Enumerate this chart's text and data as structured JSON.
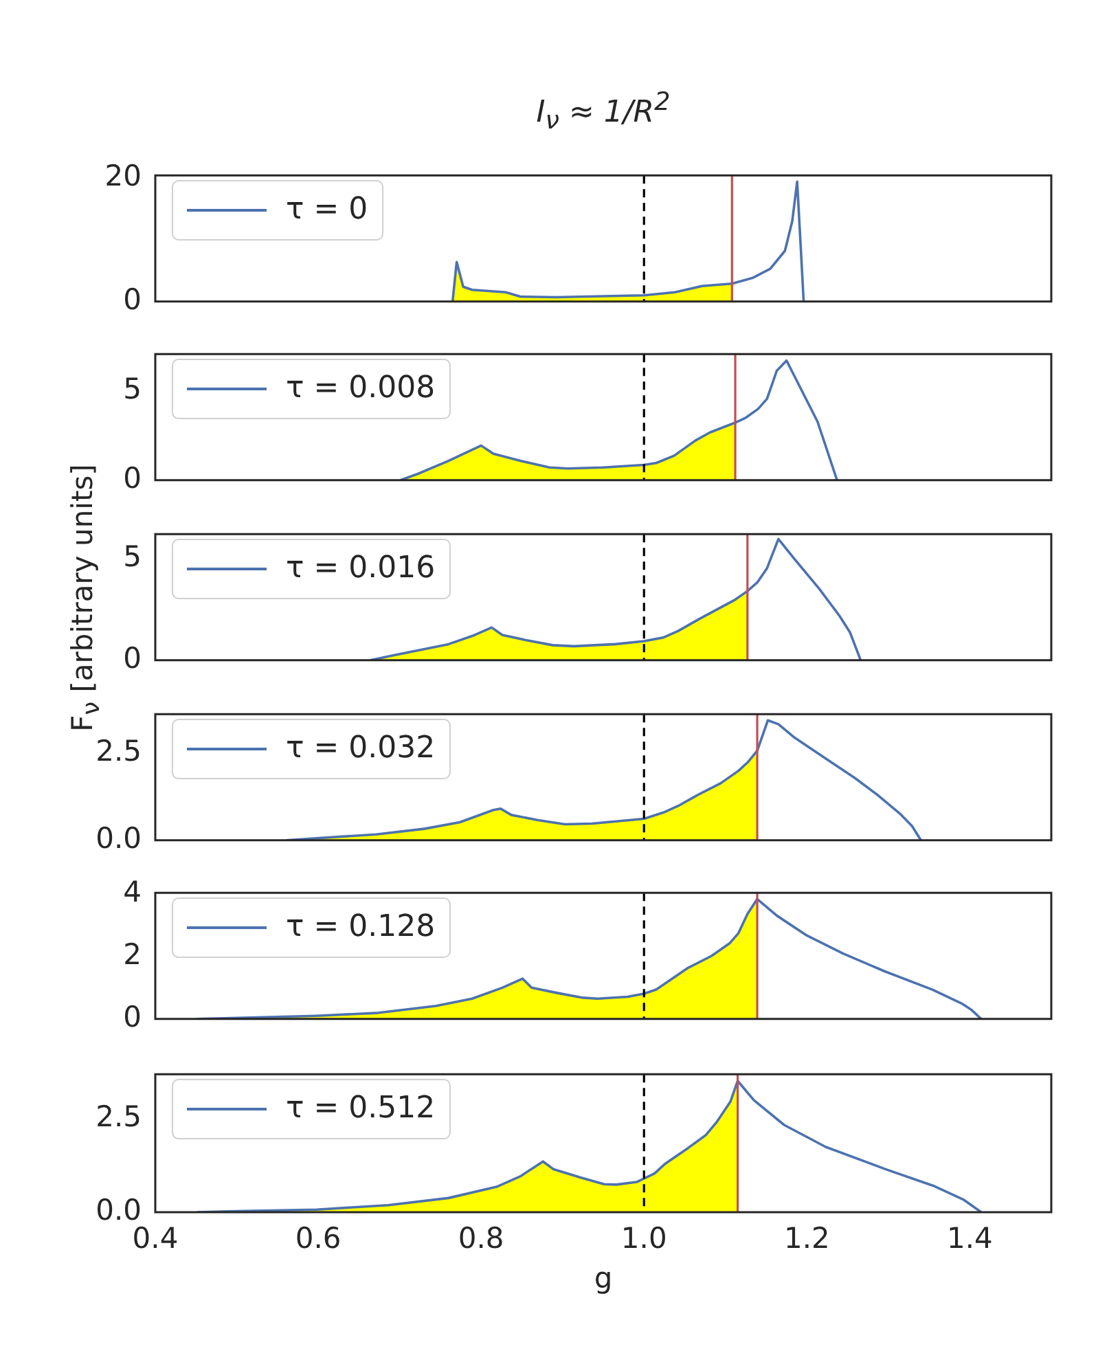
{
  "chart_data": [
    {
      "type": "line",
      "title": "I$_{ν}$ ≈ 1/R$^{2}$",
      "xlim": [
        0.4,
        1.5
      ],
      "ylim": [
        0,
        20.4
      ],
      "yticks": [
        0,
        20
      ],
      "tick_labels": "y",
      "legend": "top left",
      "ref_lines": [
        {
          "axis": "x",
          "value": 1.0,
          "color": "#000000",
          "line_style": "dashed"
        },
        {
          "axis": "x",
          "value": 1.108,
          "color": "#c44e52",
          "line_style": "solid"
        }
      ],
      "series": [
        {
          "type": "area",
          "color": "#ffff00",
          "x": [
            0.765,
            0.77,
            0.778,
            0.789,
            0.83,
            0.848,
            0.892,
            1.0,
            1.038,
            1.071,
            1.108
          ],
          "values": [
            0,
            6.4,
            2.4,
            1.9,
            1.5,
            0.8,
            0.7,
            1.0,
            1.5,
            2.5,
            2.9
          ]
        },
        {
          "type": "line",
          "name": "τ = 0",
          "color": "#4c72b0",
          "x": [
            0.765,
            0.77,
            0.778,
            0.789,
            0.83,
            0.848,
            0.892,
            1.0,
            1.038,
            1.071,
            1.108,
            1.133,
            1.155,
            1.173,
            1.182,
            1.188,
            1.192,
            1.196
          ],
          "values": [
            0,
            6.4,
            2.4,
            1.9,
            1.5,
            0.8,
            0.7,
            1.0,
            1.5,
            2.5,
            2.9,
            3.8,
            5.3,
            8.2,
            13,
            19.4,
            9.8,
            0
          ]
        }
      ]
    },
    {
      "type": "line",
      "xlim": [
        0.4,
        1.5
      ],
      "ylim": [
        0,
        7.1
      ],
      "yticks": [
        0,
        5
      ],
      "tick_labels": "y",
      "legend": "top left",
      "ref_lines": [
        {
          "axis": "x",
          "value": 1.0,
          "color": "#000000",
          "line_style": "dashed"
        },
        {
          "axis": "x",
          "value": 1.112,
          "color": "#c44e52",
          "line_style": "solid"
        }
      ],
      "series": [
        {
          "type": "area",
          "color": "#ffff00",
          "x": [
            0.701,
            0.723,
            0.76,
            0.8,
            0.815,
            0.848,
            0.884,
            0.906,
            0.95,
            1.0,
            1.015,
            1.037,
            1.063,
            1.081,
            1.112
          ],
          "values": [
            0,
            0.37,
            1.09,
            1.95,
            1.49,
            1.09,
            0.72,
            0.66,
            0.72,
            0.86,
            0.97,
            1.38,
            2.23,
            2.69,
            3.24
          ]
        },
        {
          "type": "line",
          "name": "τ = 0.008",
          "color": "#4c72b0",
          "x": [
            0.701,
            0.723,
            0.76,
            0.8,
            0.815,
            0.848,
            0.884,
            0.906,
            0.95,
            1.0,
            1.015,
            1.037,
            1.063,
            1.081,
            1.112,
            1.125,
            1.14,
            1.151,
            1.163,
            1.175,
            1.213,
            1.237
          ],
          "values": [
            0,
            0.37,
            1.09,
            1.95,
            1.49,
            1.09,
            0.72,
            0.66,
            0.72,
            0.86,
            0.97,
            1.38,
            2.23,
            2.69,
            3.24,
            3.52,
            4.01,
            4.58,
            6.16,
            6.73,
            3.3,
            0
          ]
        }
      ]
    },
    {
      "type": "line",
      "ylabel": "F$_{ν}$ [arbitrary units]",
      "xlim": [
        0.4,
        1.5
      ],
      "ylim": [
        0,
        6.2
      ],
      "yticks": [
        0,
        5
      ],
      "tick_labels": "y",
      "legend": "top left",
      "ref_lines": [
        {
          "axis": "x",
          "value": 1.0,
          "color": "#000000",
          "line_style": "dashed"
        },
        {
          "axis": "x",
          "value": 1.127,
          "color": "#c44e52",
          "line_style": "solid"
        }
      ],
      "series": [
        {
          "type": "area",
          "color": "#ffff00",
          "x": [
            0.664,
            0.693,
            0.76,
            0.789,
            0.813,
            0.826,
            0.855,
            0.888,
            0.914,
            0.965,
            1.0,
            1.024,
            1.042,
            1.068,
            1.112,
            1.127
          ],
          "values": [
            0,
            0.25,
            0.79,
            1.19,
            1.61,
            1.24,
            0.99,
            0.74,
            0.69,
            0.79,
            0.94,
            1.12,
            1.44,
            2.03,
            2.98,
            3.4
          ]
        },
        {
          "type": "line",
          "name": "τ = 0.016",
          "color": "#4c72b0",
          "x": [
            0.664,
            0.693,
            0.76,
            0.789,
            0.813,
            0.826,
            0.855,
            0.888,
            0.914,
            0.965,
            1.0,
            1.024,
            1.042,
            1.068,
            1.112,
            1.127,
            1.139,
            1.151,
            1.165,
            1.185,
            1.215,
            1.24,
            1.253,
            1.266
          ],
          "values": [
            0,
            0.25,
            0.79,
            1.19,
            1.61,
            1.24,
            0.99,
            0.74,
            0.69,
            0.79,
            0.94,
            1.12,
            1.44,
            2.03,
            2.98,
            3.4,
            3.82,
            4.52,
            5.96,
            4.96,
            3.52,
            2.18,
            1.36,
            0
          ]
        }
      ]
    },
    {
      "type": "line",
      "xlim": [
        0.4,
        1.5
      ],
      "ylim": [
        0,
        3.63
      ],
      "yticks": [
        {
          "value": 0,
          "label": "0.0"
        },
        2.5
      ],
      "tick_labels": "y",
      "legend": "top left",
      "ref_lines": [
        {
          "axis": "x",
          "value": 1.0,
          "color": "#000000",
          "line_style": "dashed"
        },
        {
          "axis": "x",
          "value": 1.139,
          "color": "#c44e52",
          "line_style": "solid"
        }
      ],
      "series": [
        {
          "type": "area",
          "color": "#ffff00",
          "x": [
            0.561,
            0.598,
            0.671,
            0.73,
            0.774,
            0.815,
            0.824,
            0.837,
            0.87,
            0.903,
            0.936,
            1.0,
            1.024,
            1.042,
            1.064,
            1.094,
            1.116,
            1.128,
            1.139
          ],
          "values": [
            0,
            0.06,
            0.17,
            0.33,
            0.52,
            0.87,
            0.91,
            0.73,
            0.58,
            0.46,
            0.48,
            0.62,
            0.8,
            0.99,
            1.28,
            1.64,
            2.0,
            2.26,
            2.58
          ]
        },
        {
          "type": "line",
          "name": "τ = 0.032",
          "color": "#4c72b0",
          "x": [
            0.561,
            0.598,
            0.671,
            0.73,
            0.774,
            0.815,
            0.824,
            0.837,
            0.87,
            0.903,
            0.936,
            1.0,
            1.024,
            1.042,
            1.064,
            1.094,
            1.116,
            1.128,
            1.139,
            1.152,
            1.165,
            1.185,
            1.222,
            1.259,
            1.288,
            1.314,
            1.329,
            1.34
          ],
          "values": [
            0,
            0.06,
            0.17,
            0.33,
            0.52,
            0.87,
            0.91,
            0.73,
            0.58,
            0.46,
            0.48,
            0.62,
            0.8,
            0.99,
            1.28,
            1.64,
            2.0,
            2.26,
            2.58,
            3.45,
            3.34,
            2.95,
            2.37,
            1.79,
            1.28,
            0.77,
            0.41,
            0
          ]
        }
      ]
    },
    {
      "type": "line",
      "xlim": [
        0.4,
        1.5
      ],
      "ylim": [
        0,
        4.04
      ],
      "yticks": [
        0,
        2,
        4
      ],
      "tick_labels": "y",
      "legend": "top left",
      "ref_lines": [
        {
          "axis": "x",
          "value": 1.0,
          "color": "#000000",
          "line_style": "dashed"
        },
        {
          "axis": "x",
          "value": 1.139,
          "color": "#c44e52",
          "line_style": "solid"
        }
      ],
      "series": [
        {
          "type": "area",
          "color": "#ffff00",
          "x": [
            0.451,
            0.598,
            0.671,
            0.745,
            0.789,
            0.826,
            0.851,
            0.862,
            0.892,
            0.925,
            0.943,
            0.98,
            1.0,
            1.015,
            1.053,
            1.083,
            1.105,
            1.116,
            1.127,
            1.139
          ],
          "values": [
            0,
            0.1,
            0.19,
            0.42,
            0.65,
            1.0,
            1.29,
            1.0,
            0.84,
            0.68,
            0.65,
            0.71,
            0.81,
            0.94,
            1.62,
            2.02,
            2.42,
            2.75,
            3.36,
            3.84
          ]
        },
        {
          "type": "line",
          "name": "τ = 0.128",
          "color": "#4c72b0",
          "x": [
            0.451,
            0.598,
            0.671,
            0.745,
            0.789,
            0.826,
            0.851,
            0.862,
            0.892,
            0.925,
            0.943,
            0.98,
            1.0,
            1.015,
            1.053,
            1.083,
            1.105,
            1.116,
            1.127,
            1.139,
            1.163,
            1.2,
            1.244,
            1.295,
            1.354,
            1.391,
            1.402,
            1.414
          ],
          "values": [
            0,
            0.1,
            0.19,
            0.42,
            0.65,
            1.0,
            1.29,
            1.0,
            0.84,
            0.68,
            0.65,
            0.71,
            0.81,
            0.94,
            1.62,
            2.02,
            2.42,
            2.75,
            3.36,
            3.84,
            3.31,
            2.67,
            2.1,
            1.53,
            0.94,
            0.48,
            0.29,
            0
          ]
        }
      ]
    },
    {
      "type": "line",
      "xlabel": "g",
      "xlim": [
        0.4,
        1.5
      ],
      "xticks": [
        0.4,
        0.6,
        0.8,
        {
          "value": 1.0,
          "label": "1.0"
        },
        1.2,
        1.4
      ],
      "ylim": [
        0,
        3.7
      ],
      "yticks": [
        {
          "value": 0,
          "label": "0.0"
        },
        2.5
      ],
      "legend": "top left",
      "ref_lines": [
        {
          "axis": "x",
          "value": 1.0,
          "color": "#000000",
          "line_style": "dashed"
        },
        {
          "axis": "x",
          "value": 1.115,
          "color": "#c44e52",
          "line_style": "solid"
        }
      ],
      "series": [
        {
          "type": "area",
          "color": "#ffff00",
          "x": [
            0.451,
            0.488,
            0.598,
            0.686,
            0.76,
            0.819,
            0.848,
            0.876,
            0.889,
            0.922,
            0.951,
            0.966,
            0.991,
            1.013,
            1.026,
            1.054,
            1.076,
            1.089,
            1.106,
            1.115
          ],
          "values": [
            0,
            0.02,
            0.07,
            0.19,
            0.38,
            0.68,
            0.96,
            1.36,
            1.15,
            0.93,
            0.75,
            0.74,
            0.81,
            1.04,
            1.3,
            1.72,
            2.07,
            2.41,
            2.96,
            3.52
          ]
        },
        {
          "type": "line",
          "name": "τ = 0.512",
          "color": "#4c72b0",
          "x": [
            0.451,
            0.488,
            0.598,
            0.686,
            0.76,
            0.819,
            0.848,
            0.876,
            0.889,
            0.922,
            0.951,
            0.966,
            0.991,
            1.013,
            1.026,
            1.054,
            1.076,
            1.089,
            1.106,
            1.115,
            1.135,
            1.172,
            1.223,
            1.297,
            1.355,
            1.392,
            1.414
          ],
          "values": [
            0,
            0.02,
            0.07,
            0.19,
            0.38,
            0.68,
            0.96,
            1.36,
            1.15,
            0.93,
            0.75,
            0.74,
            0.81,
            1.04,
            1.3,
            1.72,
            2.07,
            2.41,
            2.96,
            3.52,
            3.0,
            2.34,
            1.75,
            1.15,
            0.71,
            0.34,
            0
          ]
        }
      ]
    }
  ]
}
